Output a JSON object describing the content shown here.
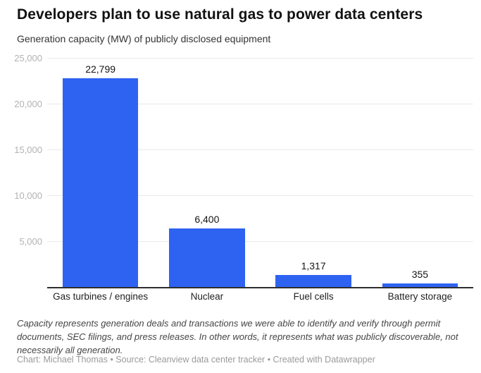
{
  "header": {
    "title": "Developers plan to use natural gas to power data centers",
    "subtitle": "Generation capacity (MW) of publicly disclosed equipment"
  },
  "chart_data": {
    "type": "bar",
    "title": "Developers plan to use natural gas to power data centers",
    "subtitle": "Generation capacity (MW) of publicly disclosed equipment",
    "categories": [
      "Gas turbines / engines",
      "Nuclear",
      "Fuel cells",
      "Battery storage"
    ],
    "values": [
      22799,
      6400,
      1317,
      355
    ],
    "value_labels": [
      "22,799",
      "6,400",
      "1,317",
      "355"
    ],
    "xlabel": "",
    "ylabel": "Generation capacity (MW)",
    "ylim": [
      0,
      25000
    ],
    "yticks": [
      5000,
      10000,
      15000,
      20000,
      25000
    ],
    "ytick_labels": [
      "5,000",
      "10,000",
      "15,000",
      "20,000",
      "25,000"
    ],
    "grid": true,
    "legend": "none",
    "bar_color": "#2e63f2",
    "gridline_color": "#e9e9e9",
    "axis_color": "#2e2e2e"
  },
  "footer": {
    "note": "Capacity represents generation deals and transactions we were able to identify and verify through permit documents, SEC filings, and press releases. In other words, it represents what was publicly discoverable, not necessarily all generation.",
    "credit": "Chart: Michael Thomas • Source: Cleanview data center tracker • Created with Datawrapper"
  }
}
